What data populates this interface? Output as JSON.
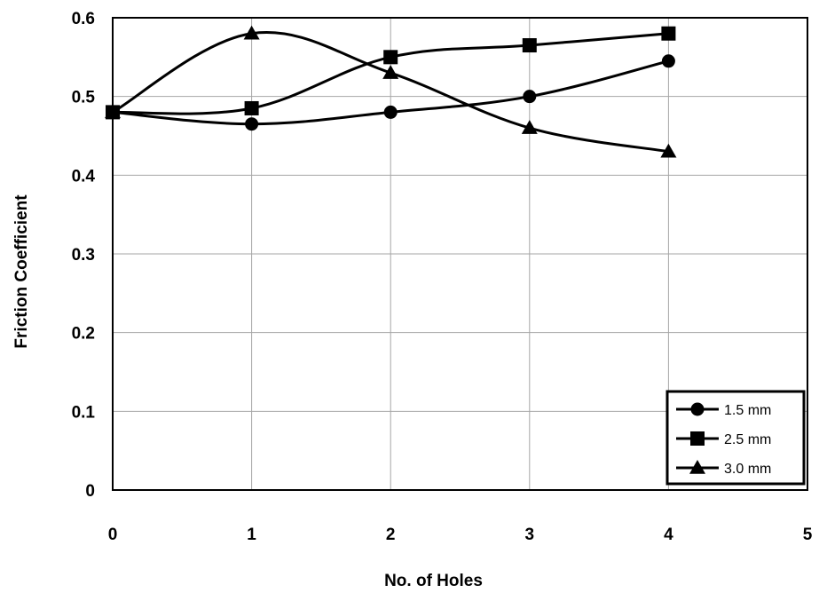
{
  "chart_data": {
    "type": "line",
    "xlabel": "No. of Holes",
    "ylabel": "Friction Coefficient",
    "xlim": [
      0,
      5
    ],
    "ylim": [
      0,
      0.6
    ],
    "xticks": [
      "0",
      "1",
      "2",
      "3",
      "4",
      "5"
    ],
    "yticks": [
      "0",
      "0.1",
      "0.2",
      "0.3",
      "0.4",
      "0.5",
      "0.6"
    ],
    "x": [
      0,
      1,
      2,
      3,
      4
    ],
    "grid": true,
    "smooth": true,
    "legend_position": "bottom-right",
    "series": [
      {
        "name": "1.5 mm",
        "marker": "circle",
        "values": [
          0.48,
          0.465,
          0.48,
          0.5,
          0.545
        ]
      },
      {
        "name": "2.5 mm",
        "marker": "square",
        "values": [
          0.48,
          0.485,
          0.55,
          0.565,
          0.58
        ]
      },
      {
        "name": "3.0 mm",
        "marker": "triangle",
        "values": [
          0.48,
          0.58,
          0.53,
          0.46,
          0.43
        ]
      }
    ]
  }
}
